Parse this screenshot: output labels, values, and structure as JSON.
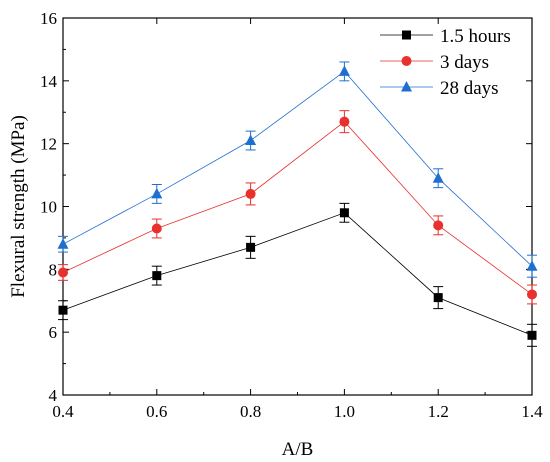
{
  "chart_data": {
    "type": "line",
    "xlabel": "A/B",
    "ylabel": "Flexural strength (MPa)",
    "xlim": [
      0.4,
      1.4
    ],
    "ylim": [
      4,
      16
    ],
    "xticks": [
      "0.4",
      "0.6",
      "0.8",
      "1.0",
      "1.2",
      "1.4"
    ],
    "yticks": [
      "4",
      "6",
      "8",
      "10",
      "12",
      "14",
      "16"
    ],
    "x": [
      0.4,
      0.6,
      0.8,
      1.0,
      1.2,
      1.4
    ],
    "grid": false,
    "legend_position": "top-right",
    "series": [
      {
        "name": "1.5 hours",
        "color": "#000000",
        "marker": "square",
        "values": [
          6.7,
          7.8,
          8.7,
          9.8,
          7.1,
          5.9
        ],
        "errors": [
          0.3,
          0.3,
          0.35,
          0.3,
          0.35,
          0.35
        ]
      },
      {
        "name": "3 days",
        "color": "#e8302c",
        "marker": "circle",
        "values": [
          7.9,
          9.3,
          10.4,
          12.7,
          9.4,
          7.2
        ],
        "errors": [
          0.25,
          0.3,
          0.35,
          0.35,
          0.3,
          0.3
        ]
      },
      {
        "name": "28 days",
        "color": "#1f6fd1",
        "marker": "triangle",
        "values": [
          8.8,
          10.4,
          12.1,
          14.3,
          10.9,
          8.1
        ],
        "errors": [
          0.25,
          0.3,
          0.3,
          0.3,
          0.3,
          0.35
        ]
      }
    ]
  }
}
